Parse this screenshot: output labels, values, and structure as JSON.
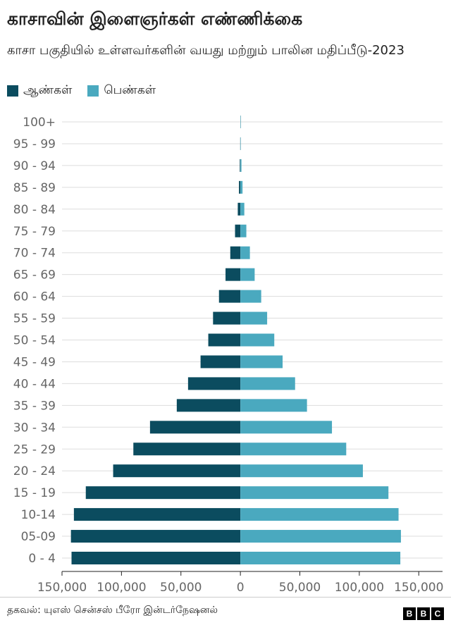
{
  "header": {
    "title": "காசாவின் இளைஞர்கள் எண்ணிக்கை",
    "subtitle": "காசா பகுதியில் உள்ளவர்களின் வயது மற்றும் பாலின மதிப்பீடு-2023"
  },
  "colors": {
    "male": "#0b4c5f",
    "female": "#4aa9bf",
    "grid": "#dddddd",
    "axis": "#222222",
    "text": "#666666"
  },
  "chart_data": {
    "type": "bar",
    "orientation": "horizontal-population-pyramid",
    "title": "காசாவின் இளைஞர்கள் எண்ணிக்கை",
    "categories": [
      "100+",
      "95 - 99",
      "90 - 94",
      "85 - 89",
      "80 - 84",
      "75 - 79",
      "70 - 74",
      "65 - 69",
      "60 - 64",
      "55 - 59",
      "50 - 54",
      "45 - 49",
      "40 - 44",
      "35 - 39",
      "30 - 34",
      "25 - 29",
      "20 - 24",
      "15 - 19",
      "10-14",
      "05-09",
      "0 - 4"
    ],
    "series": [
      {
        "name": "ஆண்கள்",
        "side": "left",
        "values": [
          50,
          150,
          500,
          1200,
          2200,
          4500,
          8500,
          12500,
          18000,
          23000,
          27000,
          33500,
          44000,
          53500,
          76000,
          90000,
          107000,
          130000,
          140000,
          142500,
          142000
        ]
      },
      {
        "name": "பெண்கள்",
        "side": "right",
        "values": [
          100,
          300,
          900,
          1800,
          3300,
          5000,
          8000,
          12000,
          17500,
          22500,
          28500,
          35500,
          46000,
          56000,
          77000,
          89000,
          103000,
          124500,
          133000,
          135000,
          134500
        ]
      }
    ],
    "xlim": [
      -150000,
      170000
    ],
    "xticks": [
      -150000,
      -100000,
      -50000,
      0,
      50000,
      100000,
      150000
    ],
    "xtick_labels": [
      "150,000",
      "100,000",
      "50,000",
      "0",
      "50,000",
      "100,000",
      "150,000"
    ],
    "grid": true,
    "legend": "top-left"
  },
  "footer": {
    "source": "தகவல்: யுஎஸ் சென்சஸ் பீரோ இன்டர்நேஷனல்",
    "brand": [
      "B",
      "B",
      "C"
    ]
  }
}
